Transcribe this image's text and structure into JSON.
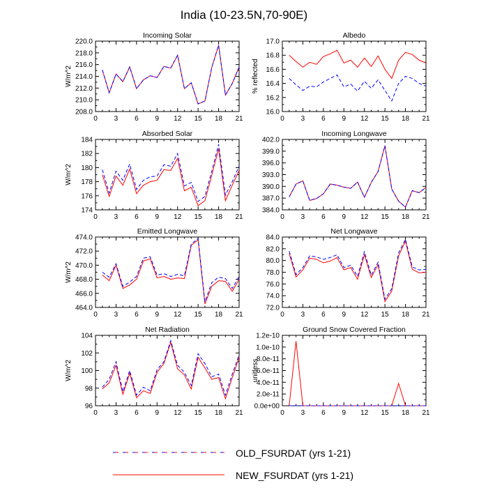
{
  "figure_title": "India (10-23.5N,70-90E)",
  "legend": {
    "old_label": "OLD_FSURDAT (yrs 1-21)",
    "new_label": "NEW_FSURDAT (yrs 1-21)"
  },
  "colors": {
    "old": "#0000ff",
    "new": "#ff0000",
    "axis": "#000000"
  },
  "chart_data": [
    {
      "type": "line",
      "title": "Incoming Solar",
      "ylabel": "W/m^2",
      "xlim": [
        0,
        21
      ],
      "xticks": [
        0,
        3,
        6,
        9,
        12,
        15,
        18,
        21
      ],
      "ylim": [
        208,
        220
      ],
      "yticks": [
        208,
        210,
        212,
        214,
        216,
        218,
        220
      ],
      "ytick_labels": [
        "208.0",
        "210.0",
        "212.0",
        "214.0",
        "216.0",
        "218.0",
        "220.0"
      ],
      "x": [
        1,
        2,
        3,
        4,
        5,
        6,
        7,
        8,
        9,
        10,
        11,
        12,
        13,
        14,
        15,
        16,
        17,
        18,
        19,
        20,
        21
      ],
      "series": [
        {
          "name": "OLD_FSURDAT (yrs 1-21)",
          "values": [
            215.1,
            211.2,
            214.4,
            213.1,
            215.6,
            211.9,
            213.4,
            214.1,
            213.8,
            215.7,
            215.4,
            217.6,
            211.9,
            212.9,
            209.3,
            209.8,
            215.5,
            219.3,
            210.8,
            212.8,
            215.6
          ]
        },
        {
          "name": "NEW_FSURDAT (yrs 1-21)",
          "values": [
            215.1,
            211.2,
            214.4,
            213.1,
            215.6,
            211.9,
            213.4,
            214.1,
            213.8,
            215.7,
            215.4,
            217.6,
            211.9,
            212.9,
            209.3,
            209.8,
            215.5,
            219.3,
            210.8,
            212.8,
            215.6
          ]
        }
      ]
    },
    {
      "type": "line",
      "title": "Albedo",
      "ylabel": "% reflected",
      "xlim": [
        0,
        21
      ],
      "xticks": [
        0,
        3,
        6,
        9,
        12,
        15,
        18,
        21
      ],
      "ylim": [
        16.0,
        17.0
      ],
      "yticks": [
        16.0,
        16.2,
        16.4,
        16.6,
        16.8,
        17.0
      ],
      "ytick_labels": [
        "16.0",
        "16.2",
        "16.4",
        "16.6",
        "16.8",
        "17.0"
      ],
      "x": [
        1,
        2,
        3,
        4,
        5,
        6,
        7,
        8,
        9,
        10,
        11,
        12,
        13,
        14,
        15,
        16,
        17,
        18,
        19,
        20,
        21
      ],
      "series": [
        {
          "name": "OLD_FSURDAT (yrs 1-21)",
          "values": [
            16.47,
            16.38,
            16.3,
            16.36,
            16.35,
            16.42,
            16.47,
            16.52,
            16.35,
            16.39,
            16.29,
            16.43,
            16.33,
            16.45,
            16.3,
            16.15,
            16.4,
            16.5,
            16.47,
            16.4,
            16.36
          ]
        },
        {
          "name": "NEW_FSURDAT (yrs 1-21)",
          "values": [
            16.8,
            16.71,
            16.63,
            16.7,
            16.67,
            16.78,
            16.82,
            16.87,
            16.69,
            16.73,
            16.63,
            16.76,
            16.64,
            16.79,
            16.6,
            16.47,
            16.73,
            16.84,
            16.81,
            16.73,
            16.69
          ]
        }
      ]
    },
    {
      "type": "line",
      "title": "Absorbed Solar",
      "ylabel": "W/m^2",
      "xlim": [
        0,
        21
      ],
      "xticks": [
        0,
        3,
        6,
        9,
        12,
        15,
        18,
        21
      ],
      "ylim": [
        174,
        184
      ],
      "yticks": [
        174,
        176,
        178,
        180,
        182,
        184
      ],
      "ytick_labels": [
        "174",
        "176",
        "178",
        "180",
        "182",
        "184"
      ],
      "x": [
        1,
        2,
        3,
        4,
        5,
        6,
        7,
        8,
        9,
        10,
        11,
        12,
        13,
        14,
        15,
        16,
        17,
        18,
        19,
        20,
        21
      ],
      "series": [
        {
          "name": "OLD_FSURDAT (yrs 1-21)",
          "values": [
            179.7,
            176.4,
            179.5,
            178.2,
            180.5,
            176.9,
            178.2,
            178.7,
            178.8,
            180.4,
            180.2,
            182.0,
            177.4,
            177.9,
            175.2,
            175.9,
            179.5,
            183.3,
            176.1,
            178.0,
            180.2
          ]
        },
        {
          "name": "NEW_FSURDAT (yrs 1-21)",
          "values": [
            179.0,
            175.9,
            178.8,
            177.5,
            179.8,
            176.3,
            177.5,
            178.0,
            178.2,
            179.7,
            179.6,
            181.3,
            176.7,
            177.2,
            174.6,
            175.3,
            178.9,
            182.7,
            175.3,
            177.5,
            179.6
          ]
        }
      ]
    },
    {
      "type": "line",
      "title": "Incoming Longwave",
      "ylabel": "",
      "xlim": [
        0,
        21
      ],
      "xticks": [
        0,
        3,
        6,
        9,
        12,
        15,
        18,
        21
      ],
      "ylim": [
        384,
        402
      ],
      "yticks": [
        384,
        387,
        390,
        393,
        396,
        399,
        402
      ],
      "ytick_labels": [
        "384.0",
        "387.0",
        "390.0",
        "393.0",
        "396.0",
        "399.0",
        "402.0"
      ],
      "x": [
        1,
        2,
        3,
        4,
        5,
        6,
        7,
        8,
        9,
        10,
        11,
        12,
        13,
        14,
        15,
        16,
        17,
        18,
        19,
        20,
        21
      ],
      "series": [
        {
          "name": "OLD_FSURDAT (yrs 1-21)",
          "values": [
            387.3,
            390.6,
            391.4,
            386.4,
            386.9,
            388.1,
            390.6,
            390.3,
            389.8,
            389.5,
            391.1,
            387.2,
            391.0,
            393.8,
            400.4,
            389.3,
            386.2,
            384.7,
            388.9,
            388.4,
            389.7
          ]
        },
        {
          "name": "NEW_FSURDAT (yrs 1-21)",
          "values": [
            387.3,
            390.6,
            391.4,
            386.4,
            386.9,
            388.1,
            390.6,
            390.3,
            389.8,
            389.5,
            391.1,
            387.2,
            391.0,
            393.8,
            400.4,
            389.3,
            386.2,
            384.7,
            388.9,
            388.4,
            389.7
          ]
        }
      ]
    },
    {
      "type": "line",
      "title": "Emitted Longwave",
      "ylabel": "W/m^2",
      "xlim": [
        0,
        21
      ],
      "xticks": [
        0,
        3,
        6,
        9,
        12,
        15,
        18,
        21
      ],
      "ylim": [
        464,
        474
      ],
      "yticks": [
        464,
        466,
        468,
        470,
        472,
        474
      ],
      "ytick_labels": [
        "464.0",
        "466.0",
        "468.0",
        "470.0",
        "472.0",
        "474.0"
      ],
      "x": [
        1,
        2,
        3,
        4,
        5,
        6,
        7,
        8,
        9,
        10,
        11,
        12,
        13,
        14,
        15,
        16,
        17,
        18,
        19,
        20,
        21
      ],
      "series": [
        {
          "name": "OLD_FSURDAT (yrs 1-21)",
          "values": [
            469.0,
            468.3,
            470.2,
            467.0,
            467.6,
            468.4,
            471.0,
            471.2,
            468.6,
            468.8,
            468.4,
            468.7,
            468.5,
            473.0,
            473.8,
            464.8,
            467.5,
            468.3,
            468.1,
            466.7,
            468.4
          ]
        },
        {
          "name": "NEW_FSURDAT (yrs 1-21)",
          "values": [
            468.6,
            467.8,
            470.0,
            466.7,
            467.2,
            468.0,
            470.6,
            470.9,
            468.2,
            468.4,
            468.0,
            468.2,
            468.1,
            472.8,
            473.6,
            464.5,
            467.0,
            467.8,
            467.7,
            466.3,
            468.0
          ]
        }
      ]
    },
    {
      "type": "line",
      "title": "Net Longwave",
      "ylabel": "",
      "xlim": [
        0,
        21
      ],
      "xticks": [
        0,
        3,
        6,
        9,
        12,
        15,
        18,
        21
      ],
      "ylim": [
        72,
        84
      ],
      "yticks": [
        72,
        74,
        76,
        78,
        80,
        82,
        84
      ],
      "ytick_labels": [
        "72.0",
        "74.0",
        "76.0",
        "78.0",
        "80.0",
        "82.0",
        "84.0"
      ],
      "x": [
        1,
        2,
        3,
        4,
        5,
        6,
        7,
        8,
        9,
        10,
        11,
        12,
        13,
        14,
        15,
        16,
        17,
        18,
        19,
        20,
        21
      ],
      "series": [
        {
          "name": "OLD_FSURDAT (yrs 1-21)",
          "values": [
            81.6,
            77.6,
            78.8,
            80.8,
            80.6,
            80.2,
            80.5,
            81.0,
            78.8,
            79.2,
            77.3,
            81.5,
            77.5,
            79.7,
            73.4,
            75.2,
            81.3,
            83.6,
            78.9,
            78.4,
            78.5
          ]
        },
        {
          "name": "NEW_FSURDAT (yrs 1-21)",
          "values": [
            81.2,
            77.2,
            78.4,
            80.4,
            80.2,
            79.6,
            79.9,
            80.5,
            78.4,
            78.8,
            76.8,
            81.0,
            77.1,
            79.3,
            73.0,
            74.8,
            80.8,
            83.3,
            78.5,
            77.9,
            78.0
          ]
        }
      ]
    },
    {
      "type": "line",
      "title": "Net Radiation",
      "ylabel": "W/m^2",
      "xlim": [
        0,
        21
      ],
      "xticks": [
        0,
        3,
        6,
        9,
        12,
        15,
        18,
        21
      ],
      "ylim": [
        96,
        104
      ],
      "yticks": [
        96,
        98,
        100,
        102,
        104
      ],
      "ytick_labels": [
        "96",
        "98",
        "100",
        "102",
        "104"
      ],
      "x": [
        1,
        2,
        3,
        4,
        5,
        6,
        7,
        8,
        9,
        10,
        11,
        12,
        13,
        14,
        15,
        16,
        17,
        18,
        19,
        20,
        21
      ],
      "series": [
        {
          "name": "OLD_FSURDAT (yrs 1-21)",
          "values": [
            98.1,
            99.0,
            101.0,
            97.6,
            100.0,
            97.2,
            98.1,
            97.7,
            100.1,
            101.0,
            103.4,
            100.6,
            99.8,
            98.3,
            101.9,
            100.8,
            99.3,
            99.6,
            97.2,
            99.6,
            101.8
          ]
        },
        {
          "name": "NEW_FSURDAT (yrs 1-21)",
          "values": [
            97.9,
            98.6,
            100.6,
            97.3,
            99.7,
            96.9,
            97.7,
            97.4,
            99.8,
            100.8,
            103.2,
            100.2,
            99.5,
            97.9,
            101.5,
            100.3,
            99.0,
            99.2,
            96.8,
            99.2,
            101.5
          ]
        }
      ]
    },
    {
      "type": "line",
      "title": "Ground Snow Covered Fraction",
      "ylabel": "unitless",
      "xlim": [
        0,
        21
      ],
      "xticks": [
        0,
        3,
        6,
        9,
        12,
        15,
        18,
        21
      ],
      "ylim": [
        0,
        1.2e-10
      ],
      "yticks": [
        0,
        2e-11,
        4e-11,
        6e-11,
        8e-11,
        1e-10,
        1.2e-10
      ],
      "ytick_labels": [
        "0.0e+00",
        "2.0e-11",
        "4.0e-11",
        "6.0e-11",
        "8.0e-11",
        "1.0e-10",
        "1.2e-10"
      ],
      "x": [
        1,
        2,
        3,
        4,
        5,
        6,
        7,
        8,
        9,
        10,
        11,
        12,
        13,
        14,
        15,
        16,
        17,
        18,
        19,
        20,
        21
      ],
      "series": [
        {
          "name": "OLD_FSURDAT (yrs 1-21)",
          "values": [
            0,
            0,
            0,
            0,
            0,
            0,
            0,
            0,
            0,
            0,
            0,
            0,
            0,
            0,
            0,
            0,
            0,
            0,
            0,
            0,
            0
          ]
        },
        {
          "name": "NEW_FSURDAT (yrs 1-21)",
          "values": [
            0,
            1.1e-10,
            0,
            0,
            0,
            0,
            0,
            0,
            0,
            0,
            0,
            0,
            0,
            0,
            0,
            0,
            3.8e-11,
            0,
            0,
            0,
            0
          ]
        }
      ]
    }
  ]
}
